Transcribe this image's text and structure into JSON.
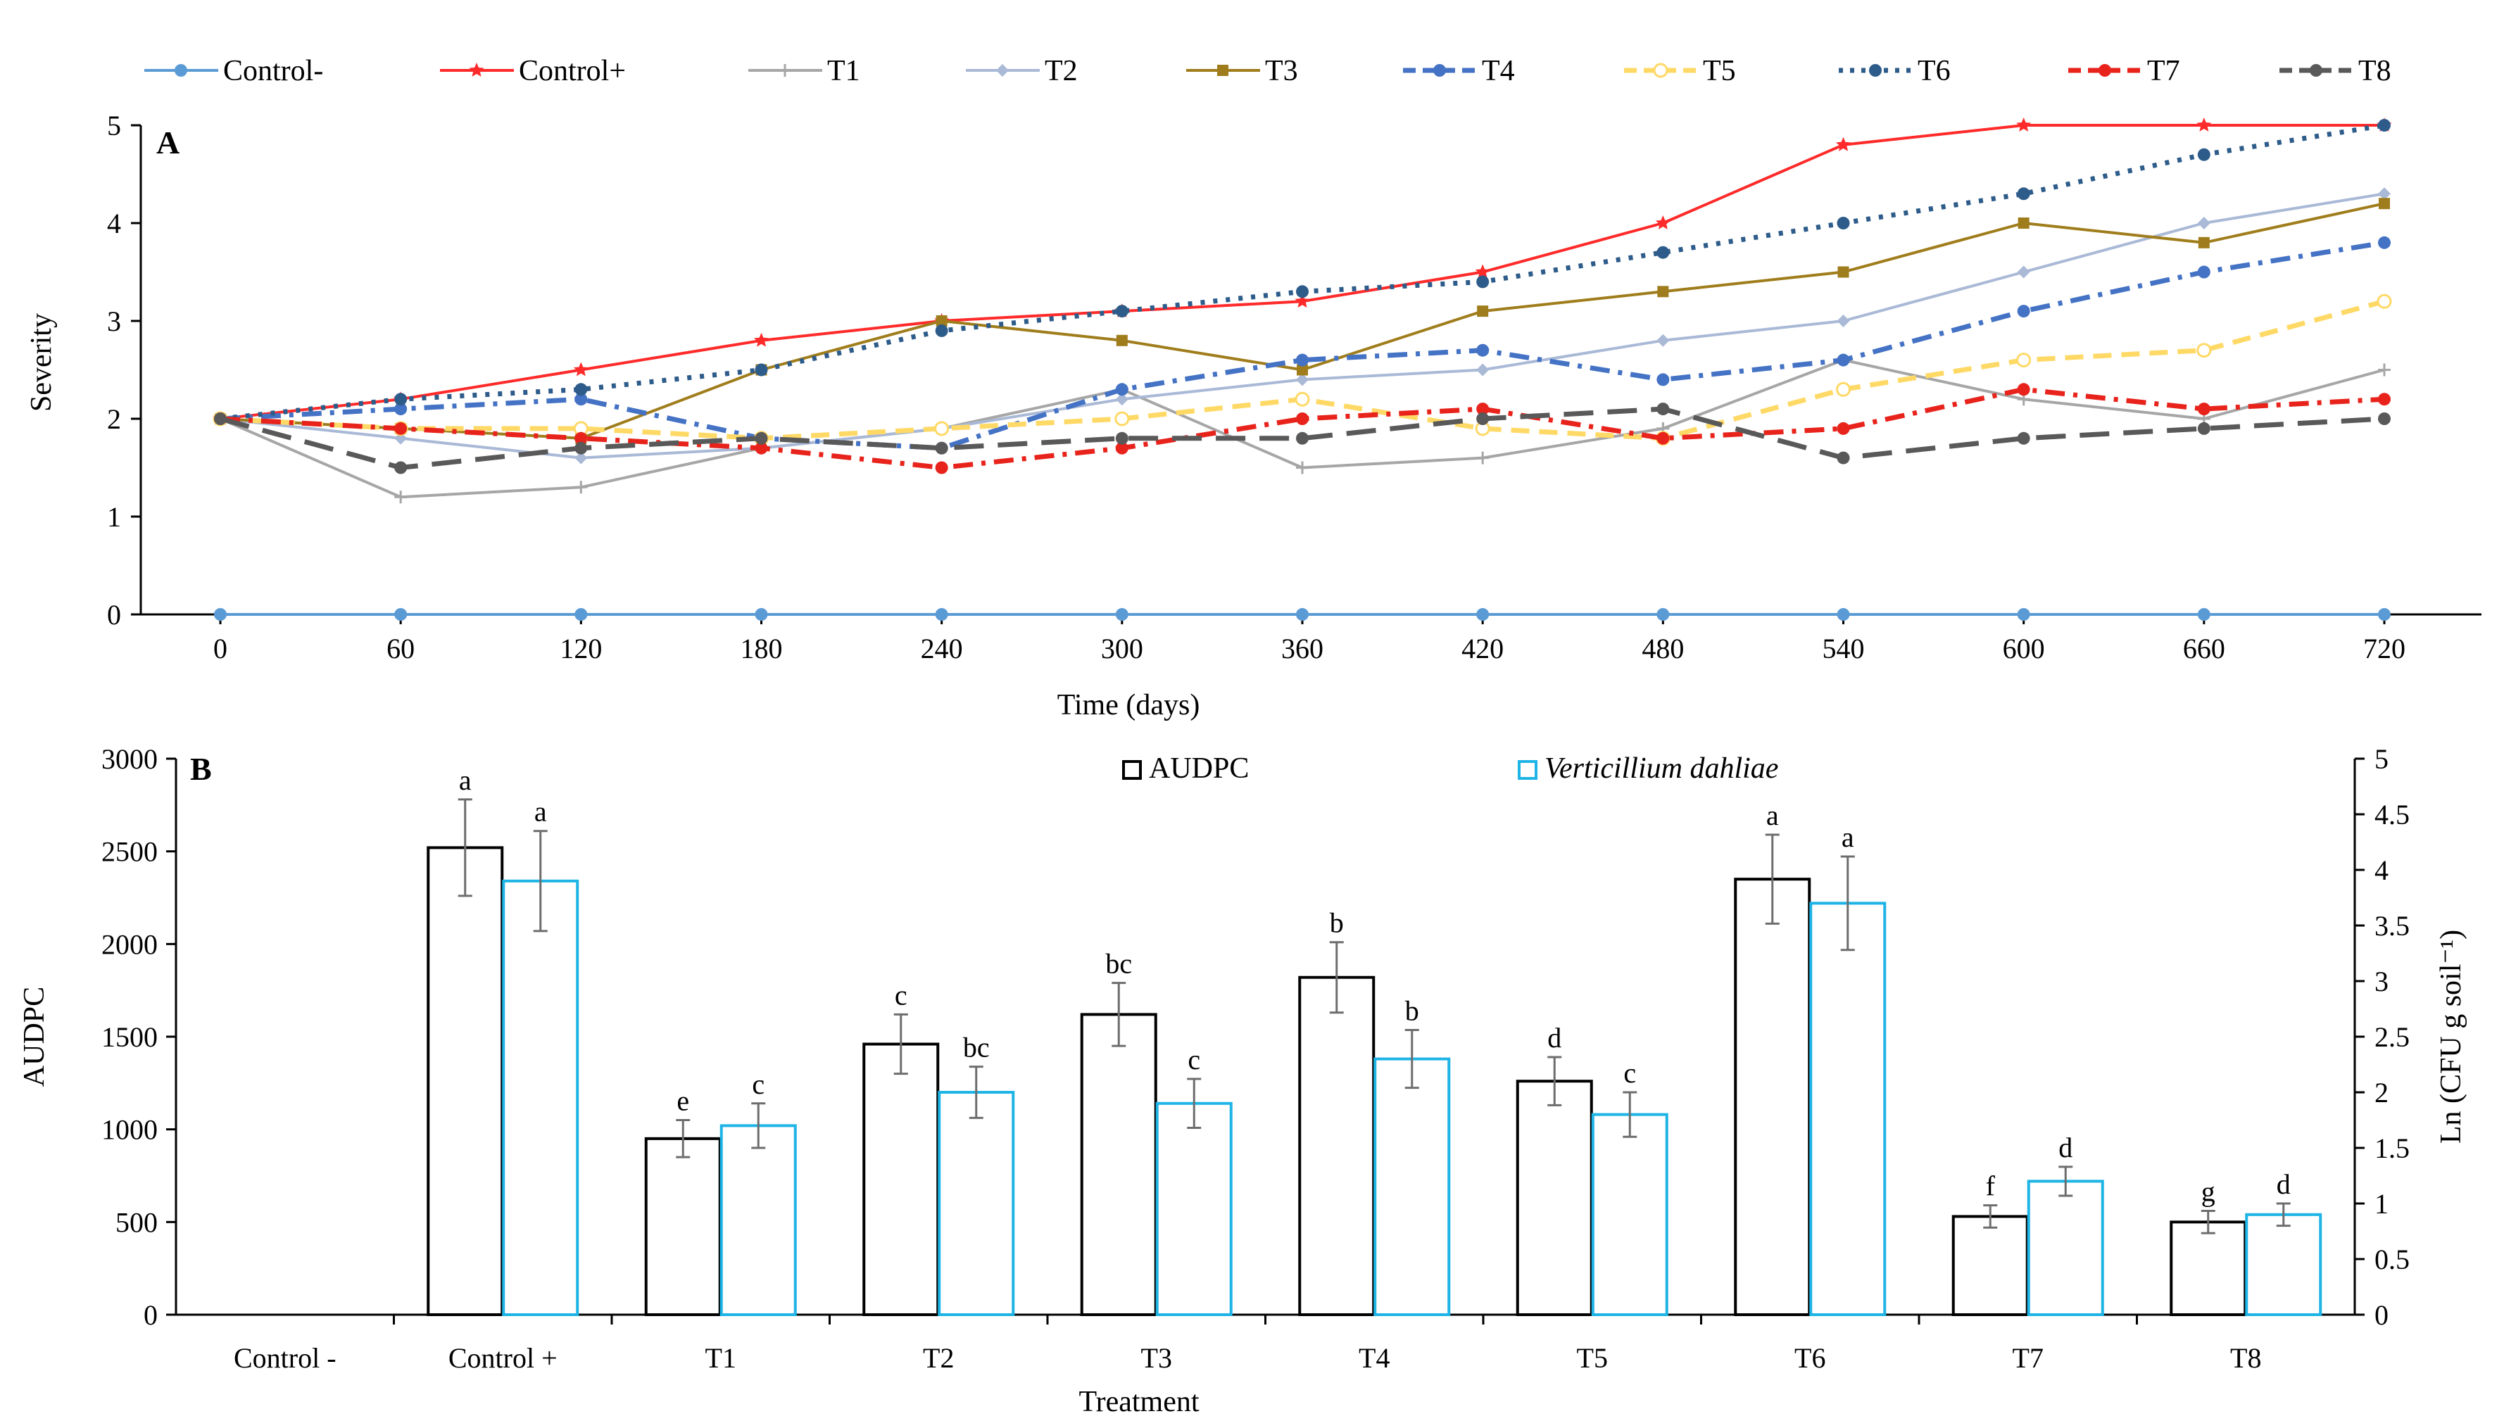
{
  "chart_data": [
    {
      "panel": "A",
      "type": "line",
      "xlabel": "Time (days)",
      "ylabel": "Severity",
      "ylim": [
        0,
        5
      ],
      "grid": false,
      "legend_position": "top",
      "x": [
        0,
        60,
        120,
        180,
        240,
        300,
        360,
        420,
        480,
        540,
        600,
        660,
        720
      ],
      "yticks": [
        0,
        1,
        2,
        3,
        4,
        5
      ],
      "series": [
        {
          "name": "Control-",
          "color": "#5B9BD5",
          "dash": "solid",
          "marker": "circle",
          "values": [
            0,
            0,
            0,
            0,
            0,
            0,
            0,
            0,
            0,
            0,
            0,
            0,
            0
          ]
        },
        {
          "name": "Control+",
          "color": "#FF2A2A",
          "dash": "solid",
          "marker": "star",
          "values": [
            2,
            2.2,
            2.5,
            2.8,
            3,
            3.1,
            3.2,
            3.5,
            4,
            4.8,
            5,
            5,
            5
          ]
        },
        {
          "name": "T1",
          "color": "#A6A6A6",
          "dash": "solid",
          "marker": "plus",
          "values": [
            2,
            1.2,
            1.3,
            1.7,
            1.9,
            2.3,
            1.5,
            1.6,
            1.9,
            2.6,
            2.2,
            2,
            2.5
          ]
        },
        {
          "name": "T2",
          "color": "#A9B9D6",
          "dash": "solid",
          "marker": "diamond",
          "values": [
            2,
            1.8,
            1.6,
            1.7,
            1.9,
            2.2,
            2.4,
            2.5,
            2.8,
            3,
            3.5,
            4,
            4.3
          ]
        },
        {
          "name": "T3",
          "color": "#A07D1C",
          "dash": "solid",
          "marker": "square",
          "values": [
            2,
            1.9,
            1.8,
            2.5,
            3,
            2.8,
            2.5,
            3.1,
            3.3,
            3.5,
            4,
            3.8,
            4.2
          ]
        },
        {
          "name": "T4",
          "color": "#4472C4",
          "dash": "dashdot",
          "marker": "circle",
          "values": [
            2,
            2.1,
            2.2,
            1.8,
            1.7,
            2.3,
            2.6,
            2.7,
            2.4,
            2.6,
            3.1,
            3.5,
            3.8
          ]
        },
        {
          "name": "T5",
          "color": "#FFD966",
          "dash": "dash",
          "marker": "circle-open",
          "values": [
            2,
            1.9,
            1.9,
            1.8,
            1.9,
            2,
            2.2,
            1.9,
            1.8,
            2.3,
            2.6,
            2.7,
            3.2
          ]
        },
        {
          "name": "T6",
          "color": "#2E5C8A",
          "dash": "dot",
          "marker": "circle",
          "values": [
            2,
            2.2,
            2.3,
            2.5,
            2.9,
            3.1,
            3.3,
            3.4,
            3.7,
            4,
            4.3,
            4.7,
            5
          ]
        },
        {
          "name": "T7",
          "color": "#E8231C",
          "dash": "dashdot",
          "marker": "circle",
          "values": [
            2,
            1.9,
            1.8,
            1.7,
            1.5,
            1.7,
            2,
            2.1,
            1.8,
            1.9,
            2.3,
            2.1,
            2.2
          ]
        },
        {
          "name": "T8",
          "color": "#595959",
          "dash": "longdash",
          "marker": "circle",
          "values": [
            2,
            1.5,
            1.7,
            1.8,
            1.7,
            1.8,
            1.8,
            2,
            2.1,
            1.6,
            1.8,
            1.9,
            2
          ]
        }
      ]
    },
    {
      "panel": "B",
      "type": "bar",
      "xlabel": "Treatment",
      "ylabel": "AUDPC",
      "y2label": "Ln (CFU g soil⁻¹)",
      "ylim": [
        0,
        3000
      ],
      "y2lim": [
        0,
        5
      ],
      "yticks": [
        0,
        500,
        1000,
        1500,
        2000,
        2500,
        3000
      ],
      "y2ticks": [
        "0",
        "0.5",
        "1",
        "1.5",
        "2",
        "2.5",
        "3",
        "3.5",
        "4",
        "4.5",
        "5"
      ],
      "legend_position": "top-center",
      "categories": [
        "Control -",
        "Control +",
        "T1",
        "T2",
        "T3",
        "T4",
        "T5",
        "T6",
        "T7",
        "T8"
      ],
      "series": [
        {
          "name": "AUDPC",
          "axis": "left",
          "color": "#000000",
          "italic": false,
          "values": [
            0,
            2520,
            950,
            1460,
            1620,
            1820,
            1260,
            2350,
            530,
            500
          ],
          "errors": [
            0,
            260,
            100,
            160,
            170,
            190,
            130,
            240,
            60,
            60
          ],
          "letters": [
            "",
            "a",
            "e",
            "c",
            "bc",
            "b",
            "d",
            "a",
            "f",
            "g"
          ]
        },
        {
          "name": "Verticillium dahliae",
          "axis": "right",
          "color": "#1EB4E6",
          "italic": true,
          "values": [
            0,
            3.9,
            1.7,
            2.0,
            1.9,
            2.3,
            1.8,
            3.7,
            1.2,
            0.9
          ],
          "errors": [
            0,
            0.45,
            0.2,
            0.23,
            0.22,
            0.26,
            0.2,
            0.42,
            0.13,
            0.1
          ],
          "letters": [
            "",
            "a",
            "c",
            "bc",
            "c",
            "b",
            "c",
            "a",
            "d",
            "d"
          ]
        }
      ]
    }
  ]
}
